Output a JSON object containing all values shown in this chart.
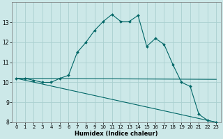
{
  "xlabel": "Humidex (Indice chaleur)",
  "ylabel": "",
  "bg_color": "#cce8e8",
  "grid_color": "#aad0d0",
  "line_color": "#006666",
  "xlim": [
    -0.5,
    23.5
  ],
  "ylim": [
    8,
    14
  ],
  "yticks": [
    8,
    9,
    10,
    11,
    12,
    13
  ],
  "xticks": [
    0,
    1,
    2,
    3,
    4,
    5,
    6,
    7,
    8,
    9,
    10,
    11,
    12,
    13,
    14,
    15,
    16,
    17,
    18,
    19,
    20,
    21,
    22,
    23
  ],
  "line1_x": [
    0,
    1,
    2,
    3,
    4,
    5,
    6,
    7,
    8,
    9,
    10,
    11,
    12,
    13,
    14,
    15,
    16,
    17,
    18,
    19,
    20,
    21,
    22,
    23
  ],
  "line1_y": [
    10.2,
    10.2,
    10.1,
    10.0,
    10.0,
    10.2,
    10.35,
    11.5,
    12.0,
    12.6,
    13.05,
    13.4,
    13.05,
    13.05,
    13.35,
    11.8,
    12.2,
    11.9,
    10.9,
    10.0,
    9.8,
    8.4,
    8.1,
    8.0
  ],
  "line2_x": [
    0,
    23
  ],
  "line2_y": [
    10.2,
    10.15
  ],
  "line3_x": [
    0,
    23
  ],
  "line3_y": [
    10.2,
    8.0
  ],
  "marker_x": [
    0,
    1,
    2,
    3,
    4,
    5,
    6,
    7,
    8,
    9,
    10,
    11,
    12,
    13,
    14,
    15,
    16,
    17,
    18,
    19,
    20,
    21,
    22,
    23
  ],
  "marker_y": [
    10.2,
    10.2,
    10.1,
    10.0,
    10.0,
    10.2,
    10.35,
    11.5,
    12.0,
    12.6,
    13.05,
    13.4,
    13.05,
    13.05,
    13.35,
    11.8,
    12.2,
    11.9,
    10.9,
    10.0,
    9.8,
    8.4,
    8.1,
    8.0
  ]
}
